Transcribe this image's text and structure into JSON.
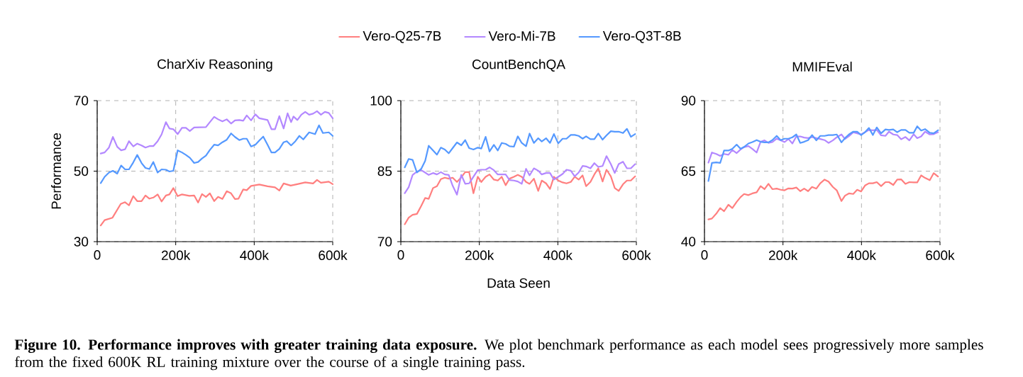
{
  "chart_data": [
    {
      "type": "line",
      "title": "CharXiv Reasoning",
      "ylabel": "Performance",
      "legend": "top",
      "grid": true,
      "marker": "none",
      "line_style": "solid",
      "xlim": [
        0,
        600000
      ],
      "xticks": [
        0,
        {
          "value": 200000,
          "label": "200k"
        },
        {
          "value": 400000,
          "label": "400k"
        },
        {
          "value": 600000,
          "label": "600k"
        }
      ],
      "ylim": [
        30,
        70
      ],
      "yticks": [
        30,
        50,
        70
      ],
      "annotations": [
        "**Figure 10. Performance improves with greater training data exposure.** We plot benchmark performance as each model sees progressively more samples from the fixed 600K RL training mixture over the course of a single training pass."
      ],
      "series": [
        {
          "name": "Vero-Q25-7B",
          "color": "#ff7f7f",
          "x": [
            9000,
            19000,
            39000,
            60000,
            71000,
            81000,
            92000,
            102000,
            113000,
            123000,
            133000,
            143000,
            154000,
            164000,
            175000,
            184000,
            194000,
            205000,
            216000,
            235000,
            247000,
            257000,
            267000,
            277000,
            287000,
            298000,
            308000,
            319000,
            330000,
            341000,
            351000,
            360000,
            372000,
            381000,
            392000,
            413000,
            434000,
            453000,
            464000,
            475000,
            493000,
            510000,
            530000,
            550000,
            560000,
            570000,
            590000,
            600000
          ],
          "values": [
            34.6,
            36.1,
            36.8,
            40.7,
            41.2,
            40.3,
            42.9,
            41.5,
            41.5,
            43.1,
            42.2,
            42.5,
            43.4,
            41.4,
            43.1,
            43.4,
            45.2,
            42.9,
            43.4,
            43.0,
            43.1,
            41.1,
            43.5,
            42.7,
            43.7,
            41.5,
            42.7,
            42.1,
            44.3,
            43.7,
            42.1,
            42.2,
            44.8,
            44.6,
            45.8,
            46.2,
            45.7,
            45.4,
            44.5,
            46.5,
            45.9,
            46.3,
            46.8,
            46.5,
            47.5,
            46.7,
            47.0,
            46.3
          ]
        },
        {
          "name": "Vero-Mi-7B",
          "color": "#b388ff",
          "x": [
            9000,
            19000,
            30000,
            40000,
            51000,
            61000,
            71000,
            81000,
            92000,
            102000,
            113000,
            123000,
            133000,
            143000,
            154000,
            164000,
            175000,
            184000,
            194000,
            205000,
            216000,
            226000,
            236000,
            247000,
            277000,
            287000,
            298000,
            308000,
            319000,
            330000,
            341000,
            351000,
            362000,
            372000,
            381000,
            392000,
            403000,
            413000,
            434000,
            444000,
            453000,
            464000,
            475000,
            485000,
            494000,
            500000,
            510000,
            520000,
            530000,
            540000,
            550000,
            560000,
            570000,
            580000,
            590000,
            600000
          ],
          "values": [
            55.0,
            55.3,
            56.7,
            59.7,
            56.9,
            55.9,
            56.2,
            58.5,
            57.0,
            57.8,
            57.3,
            56.7,
            57.1,
            57.1,
            58.5,
            60.4,
            63.9,
            62.1,
            61.9,
            60.5,
            62.3,
            62.3,
            61.4,
            62.4,
            62.5,
            63.9,
            65.4,
            64.7,
            64.1,
            64.7,
            63.5,
            64.4,
            64.5,
            64.3,
            65.8,
            64.4,
            66.1,
            65.0,
            64.5,
            61.9,
            61.9,
            65.6,
            62.1,
            66.4,
            63.9,
            65.5,
            64.5,
            66.0,
            66.8,
            66.0,
            66.3,
            67.0,
            66.0,
            66.8,
            66.5,
            65.0
          ]
        },
        {
          "name": "Vero-Q3T-8B",
          "color": "#5599ff",
          "x": [
            9000,
            19000,
            30000,
            40000,
            51000,
            61000,
            71000,
            81000,
            92000,
            102000,
            113000,
            123000,
            133000,
            143000,
            154000,
            164000,
            175000,
            184000,
            194000,
            205000,
            216000,
            226000,
            236000,
            247000,
            257000,
            267000,
            277000,
            287000,
            298000,
            308000,
            319000,
            330000,
            341000,
            351000,
            362000,
            372000,
            381000,
            392000,
            403000,
            413000,
            423000,
            434000,
            444000,
            453000,
            464000,
            475000,
            483000,
            494000,
            505000,
            515000,
            525000,
            540000,
            555000,
            565000,
            575000,
            590000,
            600000
          ],
          "values": [
            46.6,
            48.4,
            49.6,
            50.1,
            49.3,
            51.6,
            50.5,
            50.5,
            52.5,
            54.6,
            52.3,
            50.9,
            50.6,
            52.6,
            49.6,
            50.5,
            50.4,
            49.9,
            50.1,
            55.9,
            55.3,
            54.6,
            53.8,
            52.3,
            52.6,
            53.6,
            54.4,
            56.0,
            57.5,
            57.3,
            58.2,
            58.9,
            60.7,
            59.7,
            58.8,
            59.2,
            59.2,
            57.0,
            57.5,
            58.7,
            59.8,
            57.5,
            55.3,
            55.3,
            56.3,
            58.2,
            58.5,
            57.3,
            58.5,
            60.0,
            59.0,
            61.0,
            60.5,
            63.0,
            60.8,
            61.0,
            60.0
          ]
        }
      ]
    },
    {
      "type": "line",
      "title": "CountBenchQA",
      "xlabel": "Data Seen",
      "legend": false,
      "grid": true,
      "marker": "none",
      "line_style": "solid",
      "xlim": [
        0,
        600000
      ],
      "xticks": [
        0,
        {
          "value": 200000,
          "label": "200k"
        },
        {
          "value": 400000,
          "label": "400k"
        },
        {
          "value": 600000,
          "label": "600k"
        }
      ],
      "ylim": [
        70,
        100
      ],
      "yticks": [
        70,
        85,
        100
      ],
      "x": [
        10000,
        20000,
        30000,
        41000,
        52000,
        62000,
        71000,
        82000,
        92000,
        102000,
        112000,
        122000,
        132000,
        143000,
        154000,
        164000,
        174000,
        185000,
        196000,
        205000,
        216000,
        226000,
        237000,
        247000,
        257000,
        267000,
        277000,
        288000,
        298000,
        308000,
        319000,
        328000,
        339000,
        350000,
        359000,
        370000,
        380000,
        390000,
        401000,
        412000,
        422000,
        433000,
        443000,
        453000,
        463000,
        472000,
        483000,
        493000,
        503000,
        514000,
        524000,
        535000,
        545000,
        555000,
        566000,
        576000,
        586000,
        597000
      ],
      "series": [
        {
          "color": "#ff7f7f",
          "values": [
            73.7,
            75.1,
            75.7,
            75.9,
            77.6,
            79.3,
            79.1,
            81.4,
            81.8,
            83.3,
            83.6,
            83.4,
            83.6,
            82.7,
            83.7,
            84.8,
            84.8,
            80.3,
            83.8,
            82.7,
            83.8,
            84.3,
            83.2,
            83.0,
            83.8,
            82.0,
            83.4,
            83.8,
            84.2,
            83.8,
            82.7,
            82.3,
            83.4,
            80.8,
            83.0,
            82.4,
            81.2,
            83.8,
            83.0,
            82.6,
            82.4,
            82.7,
            83.8,
            83.2,
            84.1,
            81.8,
            82.7,
            84.3,
            85.6,
            82.8,
            85.3,
            83.9,
            81.4,
            80.8,
            82.2,
            83.0,
            83.0,
            83.9
          ]
        },
        {
          "color": "#b388ff",
          "values": [
            80.3,
            81.6,
            84.2,
            84.9,
            85.2,
            84.7,
            84.2,
            84.6,
            84.3,
            84.8,
            84.3,
            84.2,
            81.9,
            80.0,
            84.2,
            82.3,
            82.4,
            83.8,
            85.2,
            85.3,
            85.3,
            85.8,
            85.2,
            84.3,
            84.3,
            84.3,
            83.1,
            83.0,
            82.8,
            82.3,
            85.5,
            84.1,
            85.6,
            85.1,
            84.3,
            84.6,
            84.6,
            83.2,
            83.8,
            84.4,
            85.3,
            85.1,
            83.9,
            84.7,
            86.1,
            86.0,
            85.6,
            86.7,
            85.9,
            86.1,
            88.2,
            86.5,
            84.6,
            86.5,
            87.0,
            85.6,
            85.6,
            86.5
          ]
        },
        {
          "color": "#5599ff",
          "values": [
            85.8,
            87.6,
            87.4,
            84.7,
            85.5,
            87.2,
            90.4,
            89.4,
            88.5,
            90.0,
            89.6,
            88.8,
            89.9,
            91.1,
            90.5,
            91.6,
            89.9,
            89.6,
            90.0,
            89.8,
            92.3,
            89.2,
            90.6,
            89.4,
            91.0,
            90.8,
            90.3,
            90.2,
            92.4,
            91.0,
            90.3,
            93.0,
            91.0,
            92.0,
            91.3,
            92.0,
            91.0,
            92.9,
            90.9,
            91.9,
            91.9,
            92.7,
            92.7,
            92.5,
            91.9,
            92.4,
            91.8,
            91.8,
            93.0,
            91.7,
            92.6,
            93.5,
            93.4,
            93.4,
            93.1,
            94.0,
            92.3,
            92.9
          ]
        }
      ]
    },
    {
      "type": "line",
      "title": "MMIFEval",
      "legend": false,
      "grid": true,
      "marker": "none",
      "line_style": "solid",
      "xlim": [
        0,
        600000
      ],
      "xticks": [
        0,
        {
          "value": 200000,
          "label": "200k"
        },
        {
          "value": 400000,
          "label": "400k"
        },
        {
          "value": 600000,
          "label": "600k"
        }
      ],
      "ylim": [
        40,
        90
      ],
      "yticks": [
        40,
        65,
        90
      ],
      "x": [
        10000,
        19000,
        30000,
        40000,
        50000,
        61000,
        71000,
        82000,
        92000,
        101000,
        112000,
        122000,
        133000,
        143000,
        153000,
        163000,
        173000,
        184000,
        194000,
        204000,
        214000,
        224000,
        234000,
        244000,
        254000,
        264000,
        274000,
        285000,
        295000,
        306000,
        316000,
        327000,
        337000,
        349000,
        358000,
        368000,
        379000,
        389000,
        399000,
        409000,
        419000,
        429000,
        439000,
        450000,
        461000,
        470000,
        481000,
        491000,
        501000,
        512000,
        522000,
        533000,
        542000,
        552000,
        562000,
        574000,
        584000,
        595000
      ],
      "series": [
        {
          "color": "#ff7f7f",
          "values": [
            47.9,
            48.2,
            49.9,
            51.9,
            50.8,
            53.1,
            51.9,
            54.1,
            55.8,
            56.9,
            56.5,
            57.1,
            57.5,
            59.7,
            58.6,
            60.5,
            58.6,
            58.8,
            58.4,
            58.2,
            58.9,
            58.8,
            59.2,
            57.9,
            58.8,
            57.9,
            59.4,
            58.8,
            60.7,
            62.0,
            61.3,
            59.4,
            58.2,
            54.4,
            56.3,
            57.1,
            56.9,
            58.4,
            57.8,
            59.9,
            60.7,
            60.7,
            61.1,
            59.7,
            61.1,
            61.1,
            60.1,
            62.0,
            62.1,
            60.5,
            61.1,
            61.0,
            61.0,
            63.5,
            62.6,
            61.8,
            64.3,
            63.1
          ]
        },
        {
          "color": "#b388ff",
          "values": [
            68.0,
            71.6,
            71.1,
            70.4,
            71.1,
            70.8,
            72.5,
            71.4,
            72.7,
            73.5,
            73.9,
            72.9,
            71.6,
            75.4,
            75.9,
            75.0,
            75.3,
            76.5,
            75.9,
            75.3,
            76.4,
            74.8,
            77.3,
            77.3,
            76.9,
            76.7,
            77.1,
            76.7,
            76.4,
            76.0,
            75.0,
            75.9,
            77.0,
            78.0,
            76.4,
            77.4,
            78.8,
            78.4,
            78.0,
            78.8,
            79.6,
            79.5,
            79.6,
            77.7,
            77.5,
            79.0,
            78.0,
            77.8,
            76.3,
            77.1,
            75.9,
            78.1,
            76.7,
            77.3,
            79.0,
            78.0,
            78.1,
            78.8
          ]
        },
        {
          "color": "#5599ff",
          "values": [
            61.5,
            67.9,
            68.1,
            67.9,
            72.3,
            72.3,
            72.9,
            74.4,
            72.9,
            73.6,
            74.8,
            75.3,
            76.0,
            75.4,
            75.2,
            75.2,
            76.0,
            77.5,
            76.0,
            76.5,
            76.5,
            77.0,
            78.0,
            75.0,
            75.4,
            76.0,
            77.8,
            75.9,
            77.5,
            77.5,
            77.8,
            77.8,
            78.0,
            75.2,
            76.7,
            78.0,
            79.0,
            79.0,
            77.8,
            78.8,
            80.3,
            77.8,
            80.5,
            78.4,
            79.8,
            79.6,
            79.8,
            78.8,
            79.6,
            79.6,
            78.6,
            78.6,
            80.9,
            79.4,
            79.9,
            78.6,
            78.4,
            79.5
          ]
        }
      ]
    }
  ]
}
